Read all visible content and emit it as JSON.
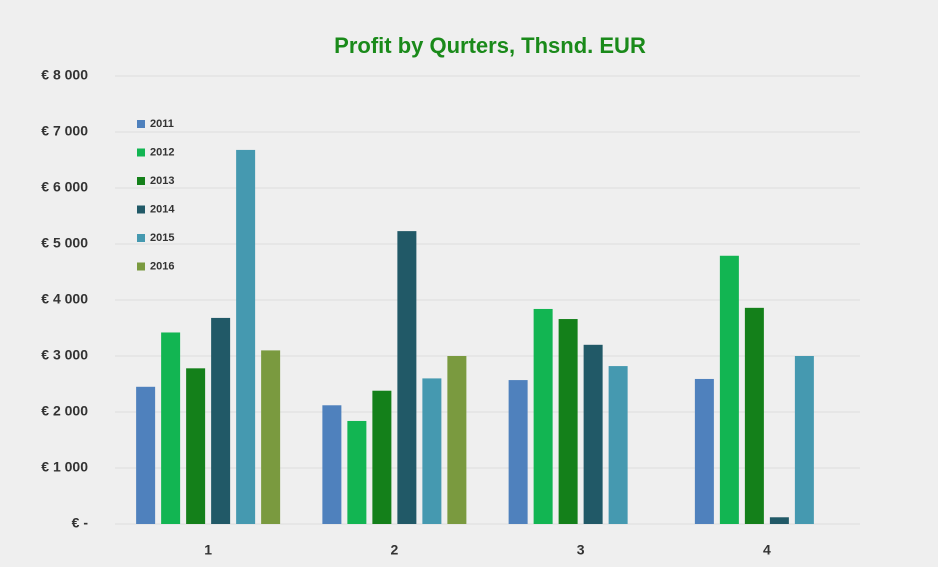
{
  "chart_data": {
    "type": "bar",
    "title": "Profit by Qurters, Thsnd. EUR",
    "categories": [
      "1",
      "2",
      "3",
      "4"
    ],
    "series": [
      {
        "name": "2011",
        "color": "#4f81bd",
        "values": [
          2450,
          2120,
          2570,
          2590
        ]
      },
      {
        "name": "2012",
        "color": "#12b552",
        "values": [
          3420,
          1840,
          3840,
          4790
        ]
      },
      {
        "name": "2013",
        "color": "#14801a",
        "values": [
          2780,
          2380,
          3660,
          3860
        ]
      },
      {
        "name": "2014",
        "color": "#215967",
        "values": [
          3680,
          5230,
          3200,
          120
        ]
      },
      {
        "name": "2015",
        "color": "#4599b0",
        "values": [
          6680,
          2600,
          2820,
          3000
        ]
      },
      {
        "name": "2016",
        "color": "#7a9a3f",
        "values": [
          3100,
          3000,
          null,
          null
        ]
      }
    ],
    "ylim": [
      0,
      8000
    ],
    "yticks": [
      {
        "value": 0,
        "label": "€ -"
      },
      {
        "value": 1000,
        "label": "€ 1 000"
      },
      {
        "value": 2000,
        "label": "€ 2 000"
      },
      {
        "value": 3000,
        "label": "€ 3 000"
      },
      {
        "value": 4000,
        "label": "€ 4 000"
      },
      {
        "value": 5000,
        "label": "€ 5 000"
      },
      {
        "value": 6000,
        "label": "€ 6 000"
      },
      {
        "value": 7000,
        "label": "€ 7 000"
      },
      {
        "value": 8000,
        "label": "€ 8 000"
      }
    ],
    "grid": true,
    "legend": "top-left"
  }
}
